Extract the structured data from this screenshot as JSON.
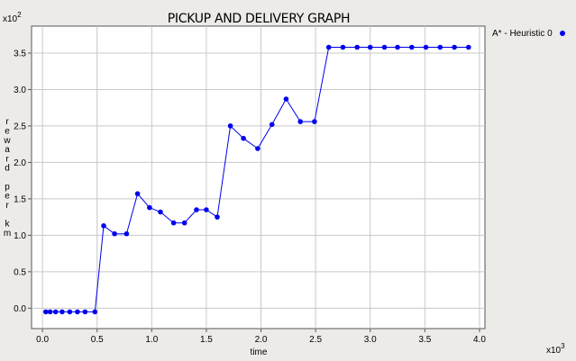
{
  "chart_data": {
    "type": "line",
    "title": "PICKUP AND DELIVERY GRAPH",
    "xlabel": "time",
    "ylabel": "reward per km",
    "x_multiplier": "x10",
    "x_multiplier_exp": "3",
    "y_multiplier": "x10",
    "y_multiplier_exp": "2",
    "xlim": [
      -0.1,
      4.05
    ],
    "ylim": [
      -0.28,
      3.87
    ],
    "x_ticks": [
      "0.0",
      "0.5",
      "1.0",
      "1.5",
      "2.0",
      "2.5",
      "3.0",
      "3.5",
      "4.0"
    ],
    "y_ticks": [
      "0.0",
      "0.5",
      "1.0",
      "1.5",
      "2.0",
      "2.5",
      "3.0",
      "3.5"
    ],
    "grid": true,
    "legend_position": "top-right",
    "color": "#0000ee",
    "series": [
      {
        "name": "A* - Heuristic 0",
        "x": [
          0.03,
          0.07,
          0.12,
          0.18,
          0.25,
          0.32,
          0.39,
          0.48,
          0.56,
          0.66,
          0.77,
          0.87,
          0.98,
          1.08,
          1.2,
          1.3,
          1.41,
          1.5,
          1.6,
          1.72,
          1.84,
          1.97,
          2.1,
          2.23,
          2.36,
          2.49,
          2.62,
          2.75,
          2.88,
          3.0,
          3.13,
          3.25,
          3.38,
          3.51,
          3.64,
          3.77,
          3.9
        ],
        "y": [
          -0.05,
          -0.05,
          -0.05,
          -0.05,
          -0.05,
          -0.05,
          -0.05,
          -0.05,
          1.13,
          1.02,
          1.02,
          1.57,
          1.38,
          1.32,
          1.17,
          1.17,
          1.35,
          1.35,
          1.25,
          2.5,
          2.33,
          2.19,
          2.52,
          2.87,
          2.56,
          2.56,
          3.58,
          3.58,
          3.58,
          3.58,
          3.58,
          3.58,
          3.58,
          3.58,
          3.58,
          3.58,
          3.58
        ]
      }
    ]
  }
}
